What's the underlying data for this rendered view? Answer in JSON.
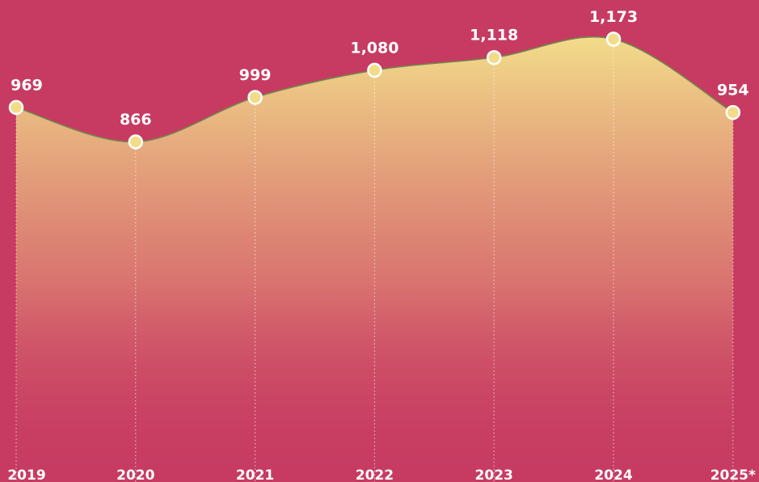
{
  "chart_data": {
    "type": "area",
    "categories": [
      "2019",
      "2020",
      "2021",
      "2022",
      "2023",
      "2024",
      "2025*"
    ],
    "values": [
      969,
      866,
      999,
      1080,
      1118,
      1173,
      954
    ],
    "value_labels": [
      "969",
      "866",
      "999",
      "1,080",
      "1,118",
      "1,173",
      "954"
    ],
    "color": "#f2dc8a",
    "ylim": [
      -150,
      1290
    ]
  }
}
